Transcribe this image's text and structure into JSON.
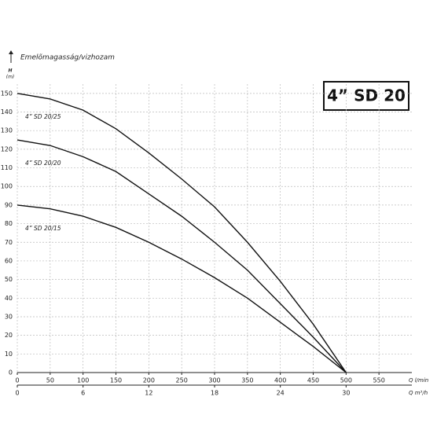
{
  "chart_data": {
    "type": "line",
    "title": "4” SD 20",
    "axis_title": "Emelõmagasság/vizhozam",
    "ylabel": "H",
    "yunit": "(m)",
    "xlabel": "Q l/min",
    "x2label": "Q m³/h",
    "x": [
      0,
      50,
      100,
      150,
      200,
      250,
      300,
      350,
      400,
      450,
      500
    ],
    "series": [
      {
        "name": "4” SD 20/25",
        "color": "#111111",
        "values": [
          150,
          147,
          141,
          131,
          118,
          104,
          89,
          70,
          49,
          26,
          0
        ]
      },
      {
        "name": "4” SD 20/20",
        "color": "#111111",
        "values": [
          125,
          122,
          116,
          108,
          96,
          84,
          70,
          55,
          37,
          19,
          0
        ]
      },
      {
        "name": "4” SD 20/15",
        "color": "#111111",
        "values": [
          90,
          88,
          84,
          78,
          70,
          61,
          51,
          40,
          27,
          14,
          0
        ]
      }
    ],
    "xlim": [
      0,
      600
    ],
    "xticks": [
      0,
      50,
      100,
      150,
      200,
      250,
      300,
      350,
      400,
      450,
      500,
      550
    ],
    "x2lim": [
      0,
      36
    ],
    "x2ticks": [
      0,
      6,
      12,
      18,
      24,
      30
    ],
    "ylim": [
      0,
      155
    ],
    "yticks": [
      0,
      10,
      20,
      30,
      40,
      50,
      60,
      70,
      80,
      90,
      100,
      110,
      120,
      130,
      140,
      150
    ],
    "grid": true
  }
}
